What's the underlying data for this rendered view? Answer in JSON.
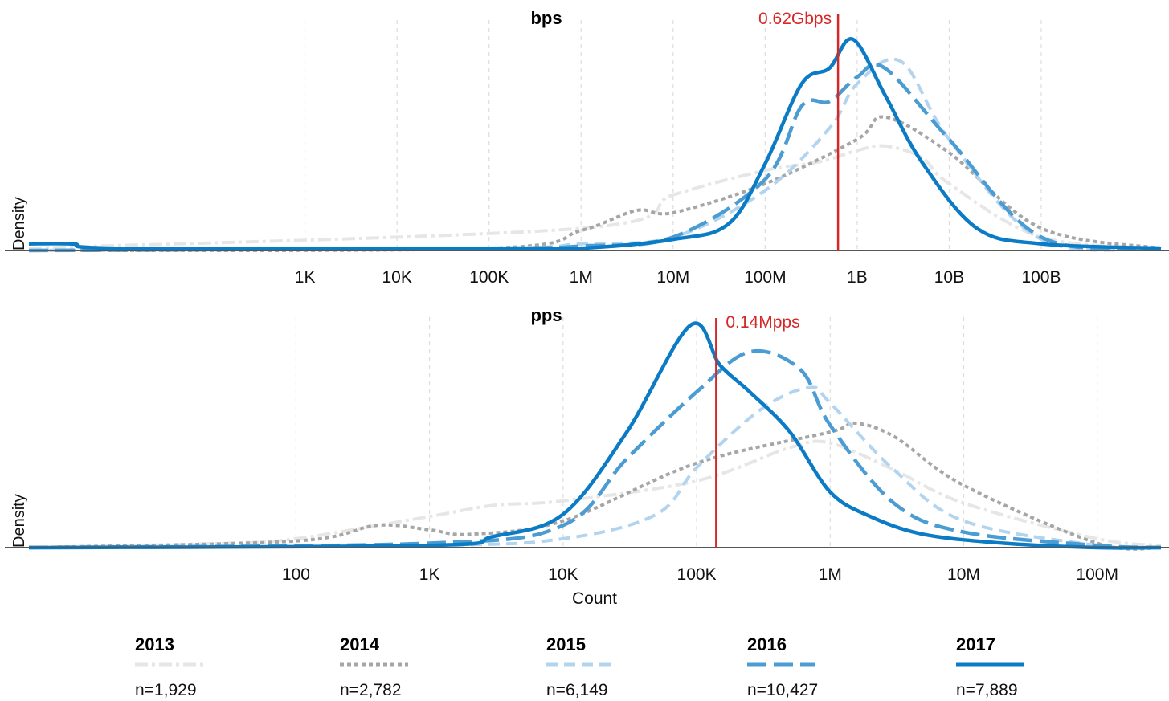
{
  "colors": {
    "2013": "#e6e6e6",
    "2014": "#a6a6a6",
    "2015": "#b3d4ef",
    "2016": "#4a9cd3",
    "2017": "#0a7bc4",
    "marker": "#d62728",
    "axis": "#555555",
    "grid": "#dddddd"
  },
  "xlabel": "Count",
  "chart_data": [
    {
      "type": "line",
      "title": "bps",
      "ylabel": "Density",
      "xscale": "log",
      "xlim": [
        1,
        2000000000000
      ],
      "tick_values": [
        1000,
        10000,
        100000,
        1000000,
        10000000,
        100000000,
        1000000000,
        10000000000,
        100000000000
      ],
      "tick_labels": [
        "1K",
        "10K",
        "100K",
        "1M",
        "10M",
        "100M",
        "1B",
        "10B",
        "100B"
      ],
      "marker": {
        "value": 620000000,
        "label": "0.62Gbps"
      },
      "series": [
        {
          "name": "2013",
          "x": [
            1,
            1000000,
            10000000,
            100000000,
            400000000,
            1000000000,
            2000000000,
            5000000000,
            10000000000,
            100000000000,
            2000000000000
          ],
          "y": [
            0.01,
            0.1,
            0.25,
            0.36,
            0.4,
            0.45,
            0.47,
            0.42,
            0.3,
            0.06,
            0.01
          ]
        },
        {
          "name": "2014",
          "x": [
            1,
            100000,
            1000000,
            4000000,
            10000000,
            100000000,
            1000000000,
            2000000000,
            10000000000,
            100000000000,
            2000000000000
          ],
          "y": [
            0.0,
            0.01,
            0.09,
            0.18,
            0.17,
            0.3,
            0.5,
            0.6,
            0.44,
            0.1,
            0.01
          ]
        },
        {
          "name": "2015",
          "x": [
            1,
            100000,
            1000000,
            10000000,
            100000000,
            500000000,
            1000000000,
            3000000000,
            10000000000,
            100000000000,
            2000000000000
          ],
          "y": [
            0.0,
            0.01,
            0.03,
            0.06,
            0.27,
            0.55,
            0.75,
            0.85,
            0.5,
            0.05,
            0.01
          ]
        },
        {
          "name": "2016",
          "x": [
            1,
            100000,
            1000000,
            10000000,
            100000000,
            250000000,
            500000000,
            1000000000,
            2000000000,
            10000000000,
            100000000000,
            2000000000000
          ],
          "y": [
            0.0,
            0.01,
            0.02,
            0.06,
            0.32,
            0.65,
            0.67,
            0.78,
            0.82,
            0.5,
            0.06,
            0.01
          ]
        },
        {
          "name": "2017",
          "x": [
            1,
            3,
            10,
            100000,
            1000000,
            10000000,
            40000000,
            100000000,
            250000000,
            500000000,
            900000000,
            2000000000,
            5000000000,
            20000000000,
            100000000000,
            2000000000000
          ],
          "y": [
            0.03,
            0.03,
            0.01,
            0.01,
            0.01,
            0.05,
            0.12,
            0.39,
            0.75,
            0.82,
            0.95,
            0.7,
            0.4,
            0.1,
            0.03,
            0.01
          ]
        }
      ]
    },
    {
      "type": "line",
      "title": "pps",
      "ylabel": "Density",
      "xscale": "log",
      "xlim": [
        1,
        300000000
      ],
      "tick_values": [
        100,
        1000,
        10000,
        100000,
        1000000,
        10000000,
        100000000
      ],
      "tick_labels": [
        "100",
        "1K",
        "10K",
        "100K",
        "1M",
        "10M",
        "100M"
      ],
      "marker": {
        "value": 140000,
        "label": "0.14Mpps"
      },
      "series": [
        {
          "name": "2013",
          "x": [
            1,
            30,
            100,
            1000,
            3000,
            10000,
            100000,
            500000,
            1000000,
            3000000,
            10000000,
            100000000,
            300000000
          ],
          "y": [
            0.0,
            0.02,
            0.04,
            0.14,
            0.19,
            0.21,
            0.3,
            0.45,
            0.47,
            0.35,
            0.2,
            0.04,
            0.01
          ]
        },
        {
          "name": "2014",
          "x": [
            1,
            100,
            400,
            1000,
            2000,
            10000,
            100000,
            1000000,
            1500000,
            3000000,
            10000000,
            100000000,
            300000000
          ],
          "y": [
            0.0,
            0.03,
            0.1,
            0.08,
            0.06,
            0.12,
            0.38,
            0.52,
            0.56,
            0.5,
            0.28,
            0.02,
            0.0
          ]
        },
        {
          "name": "2015",
          "x": [
            1,
            1000,
            10000,
            50000,
            100000,
            300000,
            700000,
            1000000,
            3000000,
            10000000,
            100000000,
            300000000
          ],
          "y": [
            0.0,
            0.01,
            0.04,
            0.15,
            0.36,
            0.62,
            0.72,
            0.65,
            0.35,
            0.12,
            0.01,
            0.0
          ]
        },
        {
          "name": "2016",
          "x": [
            1,
            1000,
            10000,
            30000,
            100000,
            250000,
            600000,
            1000000,
            3000000,
            10000000,
            100000000,
            300000000
          ],
          "y": [
            0.0,
            0.02,
            0.1,
            0.4,
            0.7,
            0.88,
            0.8,
            0.55,
            0.2,
            0.07,
            0.01,
            0.0
          ]
        },
        {
          "name": "2017",
          "x": [
            1,
            1000,
            3000,
            10000,
            30000,
            90000,
            150000,
            250000,
            500000,
            1000000,
            2000000,
            5000000,
            20000000,
            100000000,
            300000000
          ],
          "y": [
            0.0,
            0.01,
            0.05,
            0.15,
            0.52,
            1.0,
            0.82,
            0.7,
            0.52,
            0.25,
            0.14,
            0.06,
            0.02,
            0.0,
            0.0
          ]
        }
      ]
    }
  ],
  "legend": [
    {
      "year": "2013",
      "n": "n=1,929"
    },
    {
      "year": "2014",
      "n": "n=2,782"
    },
    {
      "year": "2015",
      "n": "n=6,149"
    },
    {
      "year": "2016",
      "n": "n=10,427"
    },
    {
      "year": "2017",
      "n": "n=7,889"
    }
  ]
}
